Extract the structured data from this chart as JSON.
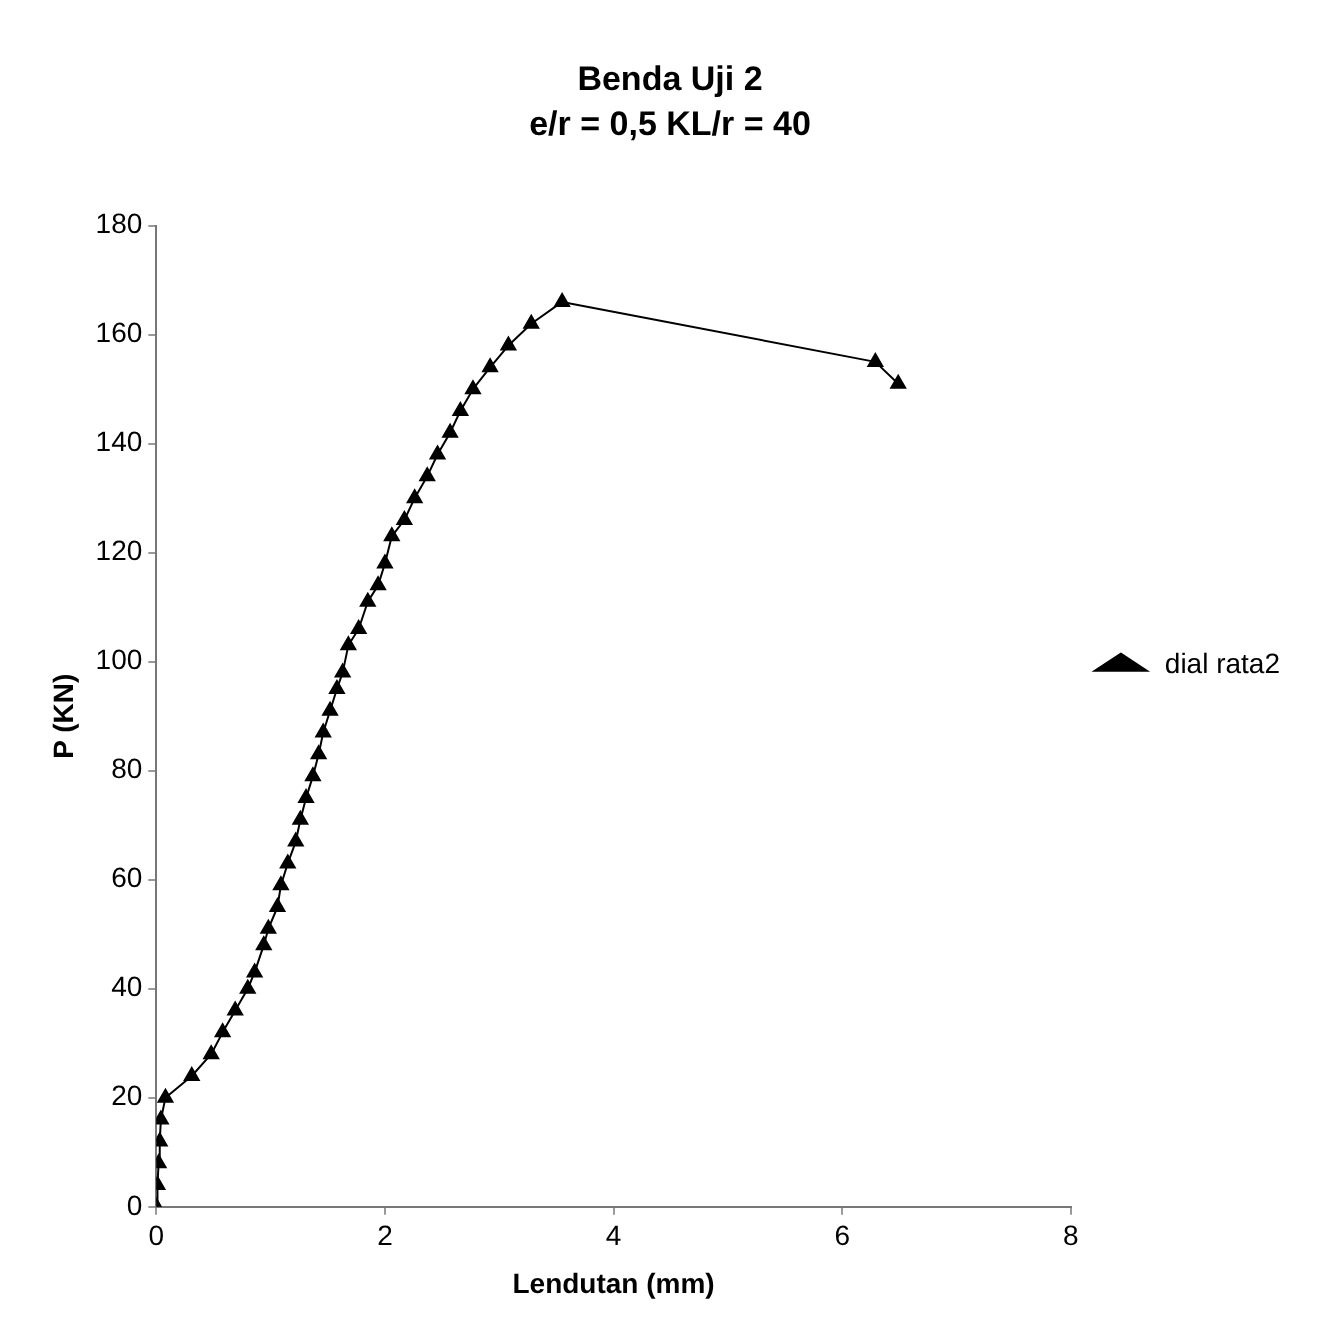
{
  "chart_data": {
    "type": "line",
    "title": "Benda Uji 2",
    "subtitle": "e/r = 0,5 KL/r = 40",
    "xlabel": "Lendutan (mm)",
    "ylabel": "P (KN)",
    "xlim": [
      0,
      8
    ],
    "xticks": [
      0,
      2,
      4,
      6,
      8
    ],
    "ylim": [
      0,
      180
    ],
    "yticks": [
      0,
      20,
      40,
      60,
      80,
      100,
      120,
      140,
      160,
      180
    ],
    "grid": false,
    "legend": "right",
    "marker": "triangle",
    "line_style": "solid",
    "series": [
      {
        "name": "dial rata2",
        "color": "#000000",
        "x": [
          0,
          0.01,
          0.02,
          0.03,
          0.04,
          0.08,
          0.31,
          0.48,
          0.58,
          0.69,
          0.8,
          0.86,
          0.94,
          0.98,
          1.06,
          1.09,
          1.15,
          1.22,
          1.26,
          1.31,
          1.37,
          1.42,
          1.46,
          1.52,
          1.58,
          1.63,
          1.68,
          1.77,
          1.85,
          1.94,
          2.0,
          2.06,
          2.17,
          2.26,
          2.37,
          2.46,
          2.57,
          2.66,
          2.77,
          2.92,
          3.08,
          3.28,
          3.55,
          6.29,
          6.49
        ],
        "values": [
          0,
          4,
          8,
          12,
          16,
          20,
          24,
          28,
          32,
          36,
          40,
          43,
          48,
          51,
          55,
          59,
          63,
          67,
          71,
          75,
          79,
          83,
          87,
          91,
          95,
          98,
          103,
          106,
          111,
          114,
          118,
          123,
          126,
          130,
          134,
          138,
          142,
          146,
          150,
          154,
          158,
          162,
          166,
          155,
          151
        ]
      }
    ]
  }
}
